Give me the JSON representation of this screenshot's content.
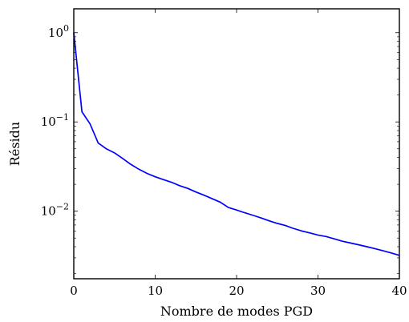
{
  "chart_data": {
    "type": "line",
    "title": "",
    "xlabel": "Nombre de modes PGD",
    "ylabel": "Résidu",
    "xlim": [
      0,
      40
    ],
    "ylim": [
      0.00175,
      1.85
    ],
    "yscale": "log",
    "grid": false,
    "legend": "none",
    "xticks": [
      {
        "value": 0,
        "label": "0"
      },
      {
        "value": 10,
        "label": "10"
      },
      {
        "value": 20,
        "label": "20"
      },
      {
        "value": 30,
        "label": "30"
      },
      {
        "value": 40,
        "label": "40"
      }
    ],
    "yticks": [
      {
        "value": 1,
        "base": "10",
        "exp": "0"
      },
      {
        "value": 0.1,
        "base": "10",
        "exp": "−1"
      },
      {
        "value": 0.01,
        "base": "10",
        "exp": "−2"
      }
    ],
    "series": [
      {
        "color": "#0000ff",
        "x": [
          0,
          1,
          2,
          3,
          4,
          5,
          6,
          7,
          8,
          9,
          10,
          11,
          12,
          13,
          14,
          15,
          16,
          17,
          18,
          19,
          20,
          21,
          22,
          23,
          24,
          25,
          26,
          27,
          28,
          29,
          30,
          31,
          32,
          33,
          34,
          35,
          36,
          37,
          38,
          39,
          40
        ],
        "y": [
          1.0,
          0.13,
          0.095,
          0.058,
          0.05,
          0.045,
          0.039,
          0.0335,
          0.0295,
          0.0265,
          0.0243,
          0.0226,
          0.0211,
          0.0193,
          0.018,
          0.0164,
          0.0151,
          0.0138,
          0.0126,
          0.011,
          0.0103,
          0.0096,
          0.009,
          0.0084,
          0.0078,
          0.0073,
          0.0069,
          0.0064,
          0.006,
          0.0057,
          0.0054,
          0.0052,
          0.0049,
          0.0046,
          0.0044,
          0.0042,
          0.004,
          0.0038,
          0.0036,
          0.0034,
          0.0032
        ]
      }
    ]
  }
}
